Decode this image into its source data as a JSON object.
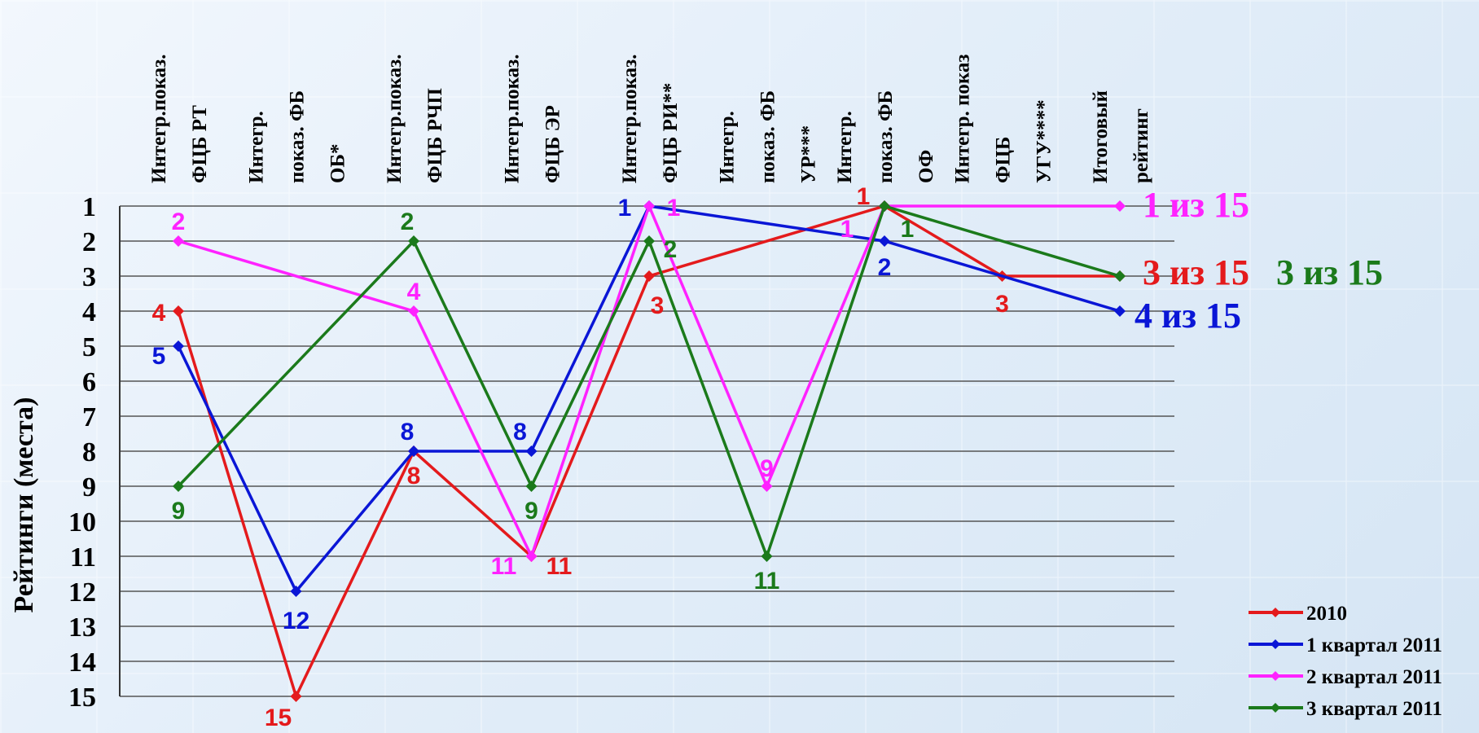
{
  "chart_data": {
    "type": "line",
    "ylabel": "Рейтинги (места)",
    "ylim": [
      1,
      15
    ],
    "y_inverted": true,
    "y_ticks": [
      "1",
      "2",
      "3",
      "4",
      "5",
      "6",
      "7",
      "8",
      "9",
      "10",
      "11",
      "12",
      "13",
      "14",
      "15"
    ],
    "categories": [
      [
        "Интегр.показ.",
        "ФЦБ РТ"
      ],
      [
        "Интегр.",
        "показ. ФБ",
        "ОБ*"
      ],
      [
        "Интегр.показ.",
        "ФЦБ РЧП"
      ],
      [
        "Интегр.показ.",
        "ФЦБ ЭР"
      ],
      [
        "Интегр.показ.",
        "ФЦБ РИ**"
      ],
      [
        "Интегр.",
        "показ. ФБ",
        "УР***"
      ],
      [
        "Интегр.",
        "показ. ФБ",
        "ОФ"
      ],
      [
        "Интегр. показ",
        "ФЦБ",
        "УГУ****"
      ],
      [
        "Итоговый",
        "рейтинг"
      ]
    ],
    "series": [
      {
        "name": "2010",
        "color": "#e41a1c",
        "points": [
          [
            0,
            4
          ],
          [
            1,
            15
          ],
          [
            2,
            8
          ],
          [
            3,
            11
          ],
          [
            4,
            3
          ],
          [
            6,
            1
          ],
          [
            7,
            3
          ],
          [
            8,
            3
          ]
        ],
        "labels": [
          "4",
          "15",
          "8",
          "11",
          "3",
          "1",
          "3"
        ]
      },
      {
        "name": "1 квартал 2011",
        "color": "#0a16d6",
        "points": [
          [
            0,
            5
          ],
          [
            1,
            12
          ],
          [
            2,
            8
          ],
          [
            3,
            8
          ],
          [
            4,
            1
          ],
          [
            6,
            2
          ],
          [
            8,
            4
          ]
        ],
        "labels": [
          "5",
          "12",
          "8",
          "8",
          "1",
          "2"
        ]
      },
      {
        "name": "2 квартал 2011",
        "color": "#ff22ff",
        "points": [
          [
            0,
            2
          ],
          [
            2,
            4
          ],
          [
            3,
            11
          ],
          [
            4,
            1
          ],
          [
            5,
            9
          ],
          [
            6,
            1
          ],
          [
            8,
            1
          ]
        ],
        "labels": [
          "2",
          "4",
          "11",
          "1",
          "9",
          "1"
        ]
      },
      {
        "name": "3 квартал 2011",
        "color": "#1b7a1b",
        "points": [
          [
            0,
            9
          ],
          [
            2,
            2
          ],
          [
            3,
            9
          ],
          [
            4,
            2
          ],
          [
            5,
            11
          ],
          [
            6,
            1
          ],
          [
            8,
            3
          ]
        ],
        "labels": [
          "9",
          "2",
          "9",
          "2",
          "11",
          "1"
        ]
      }
    ],
    "end_labels": [
      {
        "text": "1 из 15",
        "color": "#ff22ff"
      },
      {
        "text": "3 из 15",
        "color": "#e41a1c"
      },
      {
        "text": "3 из 15",
        "color": "#1b7a1b"
      },
      {
        "text": "4 из 15",
        "color": "#0a16d6"
      }
    ],
    "legend_position": "bottom-right",
    "grid": true
  }
}
